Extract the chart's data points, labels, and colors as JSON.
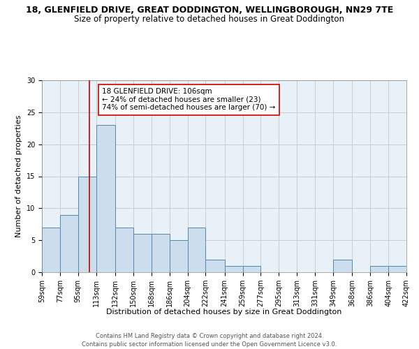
{
  "title_line1": "18, GLENFIELD DRIVE, GREAT DODDINGTON, WELLINGBOROUGH, NN29 7TE",
  "title_line2": "Size of property relative to detached houses in Great Doddington",
  "xlabel": "Distribution of detached houses by size in Great Doddington",
  "ylabel": "Number of detached properties",
  "bar_heights": [
    7,
    9,
    15,
    23,
    7,
    6,
    6,
    5,
    7,
    2,
    1,
    1,
    0,
    0,
    0,
    0,
    2,
    0,
    1,
    1
  ],
  "bin_edges": [
    59,
    77,
    95,
    113,
    132,
    150,
    168,
    186,
    204,
    222,
    241,
    259,
    277,
    295,
    313,
    331,
    349,
    368,
    386,
    404,
    422
  ],
  "x_tick_labels": [
    "59sqm",
    "77sqm",
    "95sqm",
    "113sqm",
    "132sqm",
    "150sqm",
    "168sqm",
    "186sqm",
    "204sqm",
    "222sqm",
    "241sqm",
    "259sqm",
    "277sqm",
    "295sqm",
    "313sqm",
    "331sqm",
    "349sqm",
    "368sqm",
    "386sqm",
    "404sqm",
    "422sqm"
  ],
  "bar_color": "#ccdded",
  "bar_edge_color": "#5588aa",
  "grid_color": "#cccccc",
  "bg_color": "#e8f0f8",
  "vline_x": 106,
  "vline_color": "#cc0000",
  "ylim": [
    0,
    30
  ],
  "yticks": [
    0,
    5,
    10,
    15,
    20,
    25,
    30
  ],
  "annotation_text": "18 GLENFIELD DRIVE: 106sqm\n← 24% of detached houses are smaller (23)\n74% of semi-detached houses are larger (70) →",
  "annotation_box_color": "#ffffff",
  "annotation_box_edge": "#cc0000",
  "footer_line1": "Contains HM Land Registry data © Crown copyright and database right 2024.",
  "footer_line2": "Contains public sector information licensed under the Open Government Licence v3.0.",
  "title_fontsize": 9,
  "subtitle_fontsize": 8.5,
  "ylabel_fontsize": 8,
  "xlabel_fontsize": 8,
  "tick_fontsize": 7,
  "annot_fontsize": 7.5,
  "footer_fontsize": 6
}
